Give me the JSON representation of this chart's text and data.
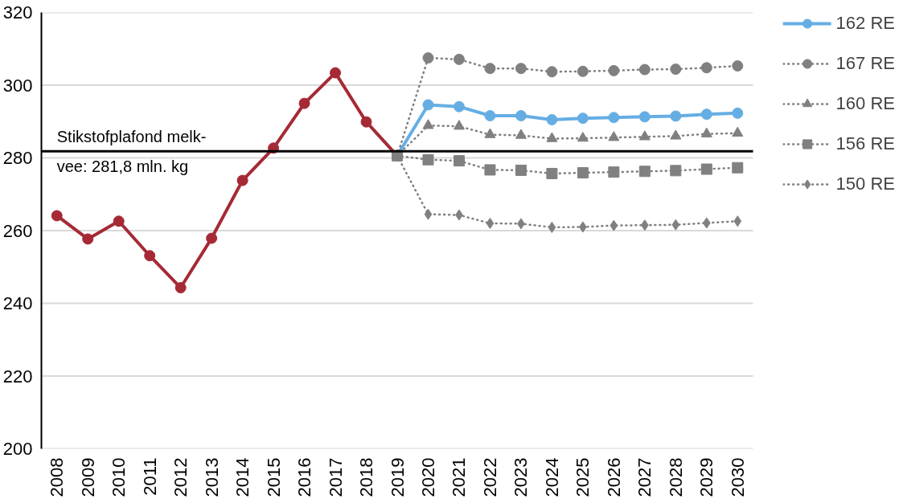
{
  "chart_data": {
    "type": "line",
    "categories": [
      "2008",
      "2009",
      "2010",
      "2011",
      "2012",
      "2013",
      "2014",
      "2015",
      "2016",
      "2017",
      "2018",
      "2019",
      "2020",
      "2021",
      "2022",
      "2023",
      "2024",
      "2025",
      "2026",
      "2027",
      "2028",
      "2029",
      "2030"
    ],
    "ylim": [
      200,
      320
    ],
    "yticks": [
      200,
      220,
      240,
      260,
      280,
      300,
      320
    ],
    "grid": "y",
    "legend": "right",
    "ref_lines": [
      {
        "axis": "y",
        "value": 281.8,
        "label": "Stikstofplafond melk-\nvee: 281,8 mln. kg",
        "color": "#000000",
        "line_style": "solid"
      }
    ],
    "series": [
      {
        "color": "#a52a35",
        "line_style": "solid",
        "marker": "circle",
        "values": [
          264.1,
          257.7,
          262.6,
          253.1,
          244.3,
          257.9,
          273.8,
          282.7,
          295.0,
          303.4,
          289.9,
          280.6,
          null,
          null,
          null,
          null,
          null,
          null,
          null,
          null,
          null,
          null,
          null
        ]
      },
      {
        "name": "162 RE",
        "color": "#65aee4",
        "line_style": "solid",
        "marker": "circle",
        "values": [
          null,
          null,
          null,
          null,
          null,
          null,
          null,
          null,
          null,
          null,
          null,
          280.6,
          294.6,
          294.1,
          291.6,
          291.6,
          290.5,
          290.9,
          291.1,
          291.3,
          291.5,
          292.0,
          292.3
        ]
      },
      {
        "name": "167 RE",
        "color": "#808080",
        "line_style": "dotted",
        "marker": "circle",
        "values": [
          null,
          null,
          null,
          null,
          null,
          null,
          null,
          null,
          null,
          null,
          null,
          280.6,
          307.5,
          307.1,
          304.6,
          304.6,
          303.7,
          303.8,
          304.0,
          304.3,
          304.4,
          304.8,
          305.3
        ]
      },
      {
        "name": "160 RE",
        "color": "#808080",
        "line_style": "dotted",
        "marker": "triangle",
        "values": [
          null,
          null,
          null,
          null,
          null,
          null,
          null,
          null,
          null,
          null,
          null,
          280.6,
          288.9,
          288.7,
          286.4,
          286.2,
          285.3,
          285.4,
          285.6,
          285.8,
          286.0,
          286.6,
          286.8
        ]
      },
      {
        "name": "156 RE",
        "color": "#808080",
        "line_style": "dotted",
        "marker": "square",
        "values": [
          null,
          null,
          null,
          null,
          null,
          null,
          null,
          null,
          null,
          null,
          null,
          280.6,
          279.5,
          279.2,
          276.7,
          276.6,
          275.7,
          275.9,
          276.1,
          276.3,
          276.5,
          276.9,
          277.3
        ]
      },
      {
        "name": "150 RE",
        "color": "#808080",
        "line_style": "dotted",
        "marker": "diamond",
        "values": [
          null,
          null,
          null,
          null,
          null,
          null,
          null,
          null,
          null,
          null,
          null,
          280.6,
          264.5,
          264.3,
          262.0,
          261.9,
          260.9,
          261.0,
          261.4,
          261.5,
          261.6,
          262.1,
          262.6
        ]
      }
    ]
  }
}
